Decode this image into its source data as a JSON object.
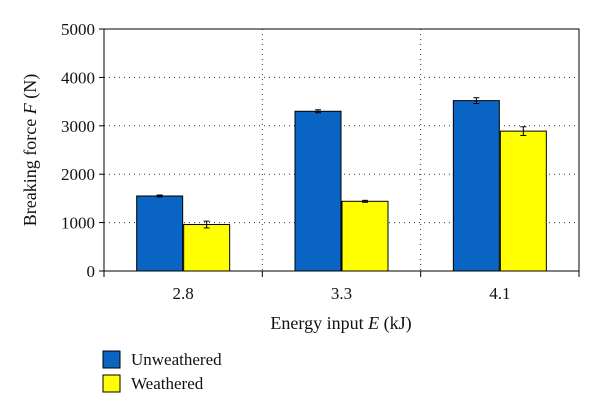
{
  "chart_data": {
    "type": "bar",
    "title": "",
    "xlabel": {
      "prefix": "Energy input ",
      "var": "E",
      "suffix": " (kJ)"
    },
    "ylabel": {
      "prefix": "Breaking force ",
      "var": "F",
      "suffix": " (N)"
    },
    "categories": [
      "2.8",
      "3.3",
      "4.1"
    ],
    "ylim": [
      0,
      5000
    ],
    "yticks": [
      0,
      1000,
      2000,
      3000,
      4000,
      5000
    ],
    "grid": "dotted",
    "legend_position": "bottom-left",
    "series": [
      {
        "name": "Unweathered",
        "color": "#0a64c3",
        "values": [
          1550,
          3300,
          3520
        ],
        "errors": [
          20,
          30,
          60
        ]
      },
      {
        "name": "Weathered",
        "color": "#ffff00",
        "values": [
          960,
          1440,
          2890
        ],
        "errors": [
          70,
          20,
          90
        ]
      }
    ]
  }
}
